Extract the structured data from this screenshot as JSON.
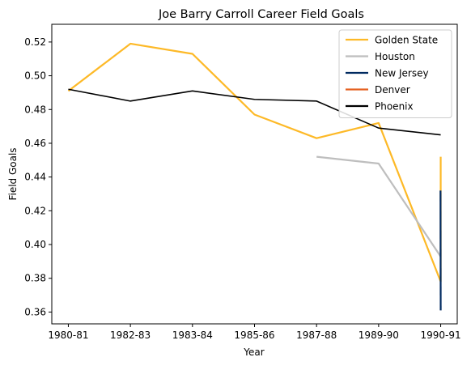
{
  "chart_data": {
    "type": "line",
    "title": "Joe Barry Carroll Career Field Goals",
    "xlabel": "Year",
    "ylabel": "Field Goals",
    "x_tick_labels": [
      "1980-81",
      "1982-83",
      "1983-84",
      "1985-86",
      "1987-88",
      "1989-90",
      "1990-91"
    ],
    "x_tick_positions": [
      0,
      1.5,
      3,
      4.5,
      6,
      7.5,
      9
    ],
    "xlim": [
      -0.4,
      9.4
    ],
    "ylim": [
      0.353,
      0.5305
    ],
    "y_ticks": [
      "0.36",
      "0.38",
      "0.40",
      "0.42",
      "0.44",
      "0.46",
      "0.48",
      "0.50",
      "0.52"
    ],
    "grid": false,
    "legend_position": "top-right",
    "series": [
      {
        "name": "Golden State",
        "color": "#FDB927",
        "points": [
          [
            0,
            0.491
          ],
          [
            1.5,
            0.519
          ],
          [
            3,
            0.513
          ],
          [
            4.5,
            0.477
          ],
          [
            6,
            0.463
          ],
          [
            7.5,
            0.472
          ],
          [
            9,
            0.378
          ],
          [
            9,
            0.452
          ]
        ],
        "x_scale_note": ""
      },
      {
        "name": "Houston",
        "color": "#BEBEBE",
        "points": [
          [
            6,
            0.452
          ],
          [
            7.5,
            0.448
          ],
          [
            8.996,
            0.393
          ],
          [
            8.996,
            0.432
          ]
        ]
      },
      {
        "name": "New Jersey",
        "color": "#002A60",
        "points": [
          [
            8.996,
            0.432
          ],
          [
            9,
            0.361
          ]
        ]
      },
      {
        "name": "Denver",
        "color": "#E56020",
        "points": []
      },
      {
        "name": "Phoenix",
        "color": "#000000",
        "points": [
          [
            0,
            0.492
          ],
          [
            1.5,
            0.485
          ],
          [
            3,
            0.491
          ],
          [
            4.5,
            0.486
          ],
          [
            6,
            0.485
          ],
          [
            7.5,
            0.469
          ],
          [
            9,
            0.465
          ]
        ]
      }
    ]
  }
}
